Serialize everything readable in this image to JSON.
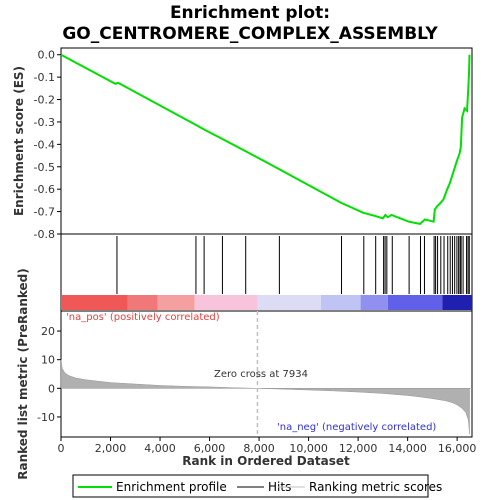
{
  "chart_data": {
    "type": "line",
    "title_line1": "Enrichment plot:",
    "title_line2": "GO_CENTROMERE_COMPLEX_ASSEMBLY",
    "ylabel_top": "Enrichment score (ES)",
    "ylabel_bottom": "Ranked list metric (PreRanked)",
    "xlabel": "Rank in Ordered Dataset",
    "x_ticks": [
      0,
      2000,
      4000,
      6000,
      8000,
      10000,
      12000,
      14000,
      16000
    ],
    "x_tick_labels": [
      "0",
      "2,000",
      "4,000",
      "6,000",
      "8,000",
      "10,000",
      "12,000",
      "14,000",
      "16,000"
    ],
    "xlim": [
      0,
      16600
    ],
    "es_yticks": [
      0.0,
      -0.1,
      -0.2,
      -0.3,
      -0.4,
      -0.5,
      -0.6,
      -0.7,
      -0.8
    ],
    "es_ytick_labels": [
      "0.0",
      "-0.1",
      "-0.2",
      "-0.3",
      "-0.4",
      "-0.5",
      "-0.6",
      "-0.7",
      "-0.8"
    ],
    "es_ylim": [
      -0.8,
      0.03
    ],
    "metric_yticks": [
      20,
      10,
      0,
      -10
    ],
    "metric_ytick_labels": [
      "20",
      "10",
      "0",
      "-10"
    ],
    "metric_ylim": [
      -17,
      27
    ],
    "enrichment_profile": {
      "x": [
        0,
        2200,
        2300,
        5400,
        5800,
        6500,
        7450,
        8800,
        11300,
        12200,
        12700,
        13000,
        13100,
        13200,
        13350,
        14050,
        14500,
        14650,
        14700,
        15050,
        15100,
        15200,
        15300,
        15450,
        15600,
        15700,
        15800,
        15900,
        16000,
        16100,
        16150,
        16200,
        16300,
        16400,
        16450,
        16480,
        16500
      ],
      "y": [
        0.0,
        -0.13,
        -0.125,
        -0.31,
        -0.335,
        -0.375,
        -0.43,
        -0.51,
        -0.66,
        -0.705,
        -0.72,
        -0.73,
        -0.715,
        -0.725,
        -0.715,
        -0.745,
        -0.755,
        -0.74,
        -0.735,
        -0.745,
        -0.69,
        -0.675,
        -0.665,
        -0.645,
        -0.6,
        -0.575,
        -0.54,
        -0.505,
        -0.47,
        -0.44,
        -0.41,
        -0.28,
        -0.24,
        -0.25,
        -0.15,
        -0.08,
        0.0
      ]
    },
    "hits": [
      2260,
      5450,
      5780,
      6520,
      7460,
      8820,
      11330,
      12230,
      12710,
      13030,
      13090,
      13160,
      13380,
      14060,
      14520,
      14680,
      15070,
      15130,
      15210,
      15340,
      15470,
      15620,
      15720,
      15810,
      15900,
      15990,
      16060,
      16120,
      16160,
      16240,
      16380,
      16440,
      16490
    ],
    "zero_cross_label": "Zero cross at 7934",
    "zero_cross": 7934,
    "pos_label": "'na_pos' (positively correlated)",
    "neg_label": "'na_neg' (negatively correlated)",
    "metric_curve": {
      "x": [
        0,
        50,
        150,
        300,
        600,
        1000,
        2000,
        3000,
        4000,
        5000,
        6000,
        7000,
        7934,
        9000,
        10000,
        11000,
        12000,
        13000,
        14000,
        14500,
        15000,
        15500,
        15800,
        16000,
        16200,
        16350,
        16450,
        16500
      ],
      "y": [
        10,
        7,
        5.5,
        4.5,
        3.6,
        3.0,
        2.0,
        1.5,
        1.0,
        0.7,
        0.5,
        0.2,
        0.0,
        -0.3,
        -0.6,
        -0.9,
        -1.3,
        -1.8,
        -2.5,
        -3.0,
        -3.6,
        -4.3,
        -5.0,
        -5.8,
        -7.0,
        -8.5,
        -11,
        -16
      ]
    },
    "legend": [
      "Enrichment profile",
      "Hits",
      "Ranking metric scores"
    ],
    "colors": {
      "profile": "#00e000",
      "hits": "#000000",
      "metric_fill": "#b0b0b0",
      "pos_text": "#e04040",
      "neg_text": "#3030d0",
      "zero_line": "#c0c0c0"
    },
    "heat_bar": [
      {
        "x0": 0,
        "x1": 2700,
        "color": "#f05858"
      },
      {
        "x0": 2700,
        "x1": 3900,
        "color": "#f07878"
      },
      {
        "x0": 3900,
        "x1": 5400,
        "color": "#f4a0a0"
      },
      {
        "x0": 5400,
        "x1": 7934,
        "color": "#f8c4dc"
      },
      {
        "x0": 7934,
        "x1": 10500,
        "color": "#dcdcf4"
      },
      {
        "x0": 10500,
        "x1": 12100,
        "color": "#c0c4f4"
      },
      {
        "x0": 12100,
        "x1": 13200,
        "color": "#9090f0"
      },
      {
        "x0": 13200,
        "x1": 15400,
        "color": "#6060e8"
      },
      {
        "x0": 15400,
        "x1": 16600,
        "color": "#2020b0"
      }
    ]
  }
}
